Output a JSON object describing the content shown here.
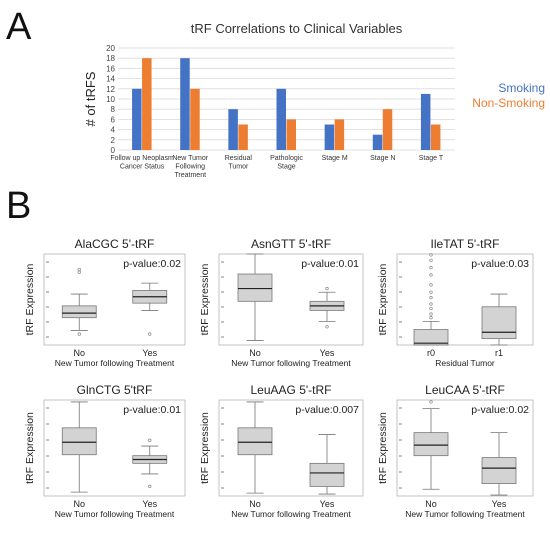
{
  "panel_a_letter": "A",
  "panel_b_letter": "B",
  "chart_data": [
    {
      "type": "bar",
      "title": "tRF Correlations to Clinical Variables",
      "ylabel": "# of tRFS",
      "xlabel": "",
      "ylim": [
        0,
        20
      ],
      "yticks": [
        0,
        2,
        4,
        6,
        8,
        10,
        12,
        14,
        16,
        18,
        20
      ],
      "grid": true,
      "legend_position": "right",
      "categories": [
        [
          "Follow up Neoplasm",
          "Cancer Status"
        ],
        [
          "New Tumor",
          "Following",
          "Treatment"
        ],
        [
          "Residual",
          "Tumor"
        ],
        [
          "Pathologic",
          "Stage"
        ],
        [
          "Stage M"
        ],
        [
          "Stage N"
        ],
        [
          "Stage T"
        ]
      ],
      "series": [
        {
          "name": "Smoking",
          "color": "#4472c4",
          "values": [
            12,
            18,
            8,
            12,
            5,
            3,
            11
          ]
        },
        {
          "name": "Non-Smoking",
          "color": "#ed7d31",
          "values": [
            18,
            12,
            5,
            6,
            6,
            8,
            5
          ]
        }
      ]
    },
    {
      "type": "box",
      "title": "AlaCGC 5'-tRF",
      "pvalue": "p-value:0.02",
      "ylabel": "tRF Expression",
      "xlabel": "New Tumor following Treatment",
      "categories": [
        "No",
        "Yes"
      ],
      "ylim": [
        0,
        1
      ],
      "boxes": [
        {
          "whisker_low": 0.16,
          "q1": 0.3,
          "median": 0.35,
          "q3": 0.43,
          "whisker_high": 0.56,
          "outliers": [
            0.12,
            0.8,
            0.83
          ]
        },
        {
          "whisker_low": 0.38,
          "q1": 0.46,
          "median": 0.53,
          "q3": 0.6,
          "whisker_high": 0.68,
          "outliers": [
            0.12
          ]
        }
      ]
    },
    {
      "type": "box",
      "title": "AsnGTT 5'-tRF",
      "pvalue": "p-value:0.01",
      "ylabel": "tRF Expression",
      "xlabel": "New Tumor following Treatment",
      "categories": [
        "No",
        "Yes"
      ],
      "ylim": [
        0,
        1
      ],
      "boxes": [
        {
          "whisker_low": 0.05,
          "q1": 0.48,
          "median": 0.62,
          "q3": 0.78,
          "whisker_high": 1.0,
          "outliers": []
        },
        {
          "whisker_low": 0.26,
          "q1": 0.38,
          "median": 0.43,
          "q3": 0.48,
          "whisker_high": 0.58,
          "outliers": [
            0.2,
            0.62
          ]
        }
      ]
    },
    {
      "type": "box",
      "title": "IleTAT 5'-tRF",
      "pvalue": "p-value:0.03",
      "ylabel": "tRF Expression",
      "xlabel": "Residual Tumor",
      "categories": [
        "r0",
        "r1"
      ],
      "ylim": [
        0,
        1
      ],
      "boxes": [
        {
          "whisker_low": 0.0,
          "q1": 0.0,
          "median": 0.02,
          "q3": 0.17,
          "whisker_high": 0.26,
          "outliers": [
            0.3,
            0.34,
            0.4,
            0.45,
            0.52,
            0.58,
            0.66,
            0.77,
            0.85,
            0.93,
            0.99
          ]
        },
        {
          "whisker_low": 0.0,
          "q1": 0.07,
          "median": 0.14,
          "q3": 0.42,
          "whisker_high": 0.56,
          "outliers": []
        }
      ]
    },
    {
      "type": "box",
      "title": "GlnCTG 5'tRF",
      "pvalue": "p-value:0.01",
      "ylabel": "tRF Expression",
      "xlabel": "New Tumor following Treatment",
      "categories": [
        "No",
        "Yes"
      ],
      "ylim": [
        0,
        1
      ],
      "boxes": [
        {
          "whisker_low": 0.04,
          "q1": 0.43,
          "median": 0.56,
          "q3": 0.71,
          "whisker_high": 0.98,
          "outliers": []
        },
        {
          "whisker_low": 0.23,
          "q1": 0.34,
          "median": 0.38,
          "q3": 0.42,
          "whisker_high": 0.52,
          "outliers": [
            0.1,
            0.58
          ]
        }
      ]
    },
    {
      "type": "box",
      "title": "LeuAAG 5'-tRF",
      "pvalue": "p-value:0.007",
      "ylabel": "tRF Expression",
      "xlabel": "New Tumor following Treatment",
      "categories": [
        "No",
        "Yes"
      ],
      "ylim": [
        0,
        1
      ],
      "boxes": [
        {
          "whisker_low": 0.03,
          "q1": 0.43,
          "median": 0.56,
          "q3": 0.71,
          "whisker_high": 0.98,
          "outliers": []
        },
        {
          "whisker_low": 0.02,
          "q1": 0.1,
          "median": 0.24,
          "q3": 0.34,
          "whisker_high": 0.64,
          "outliers": []
        }
      ]
    },
    {
      "type": "box",
      "title": "LeuCAA 5'-tRF",
      "pvalue": "p-value:0.02",
      "ylabel": "tRF Expression",
      "xlabel": "New Tumor following Treatment",
      "categories": [
        "No",
        "Yes"
      ],
      "ylim": [
        0,
        1
      ],
      "boxes": [
        {
          "whisker_low": 0.07,
          "q1": 0.42,
          "median": 0.53,
          "q3": 0.66,
          "whisker_high": 0.91,
          "outliers": [
            0.98
          ]
        },
        {
          "whisker_low": 0.01,
          "q1": 0.13,
          "median": 0.29,
          "q3": 0.4,
          "whisker_high": 0.66,
          "outliers": []
        }
      ]
    }
  ]
}
